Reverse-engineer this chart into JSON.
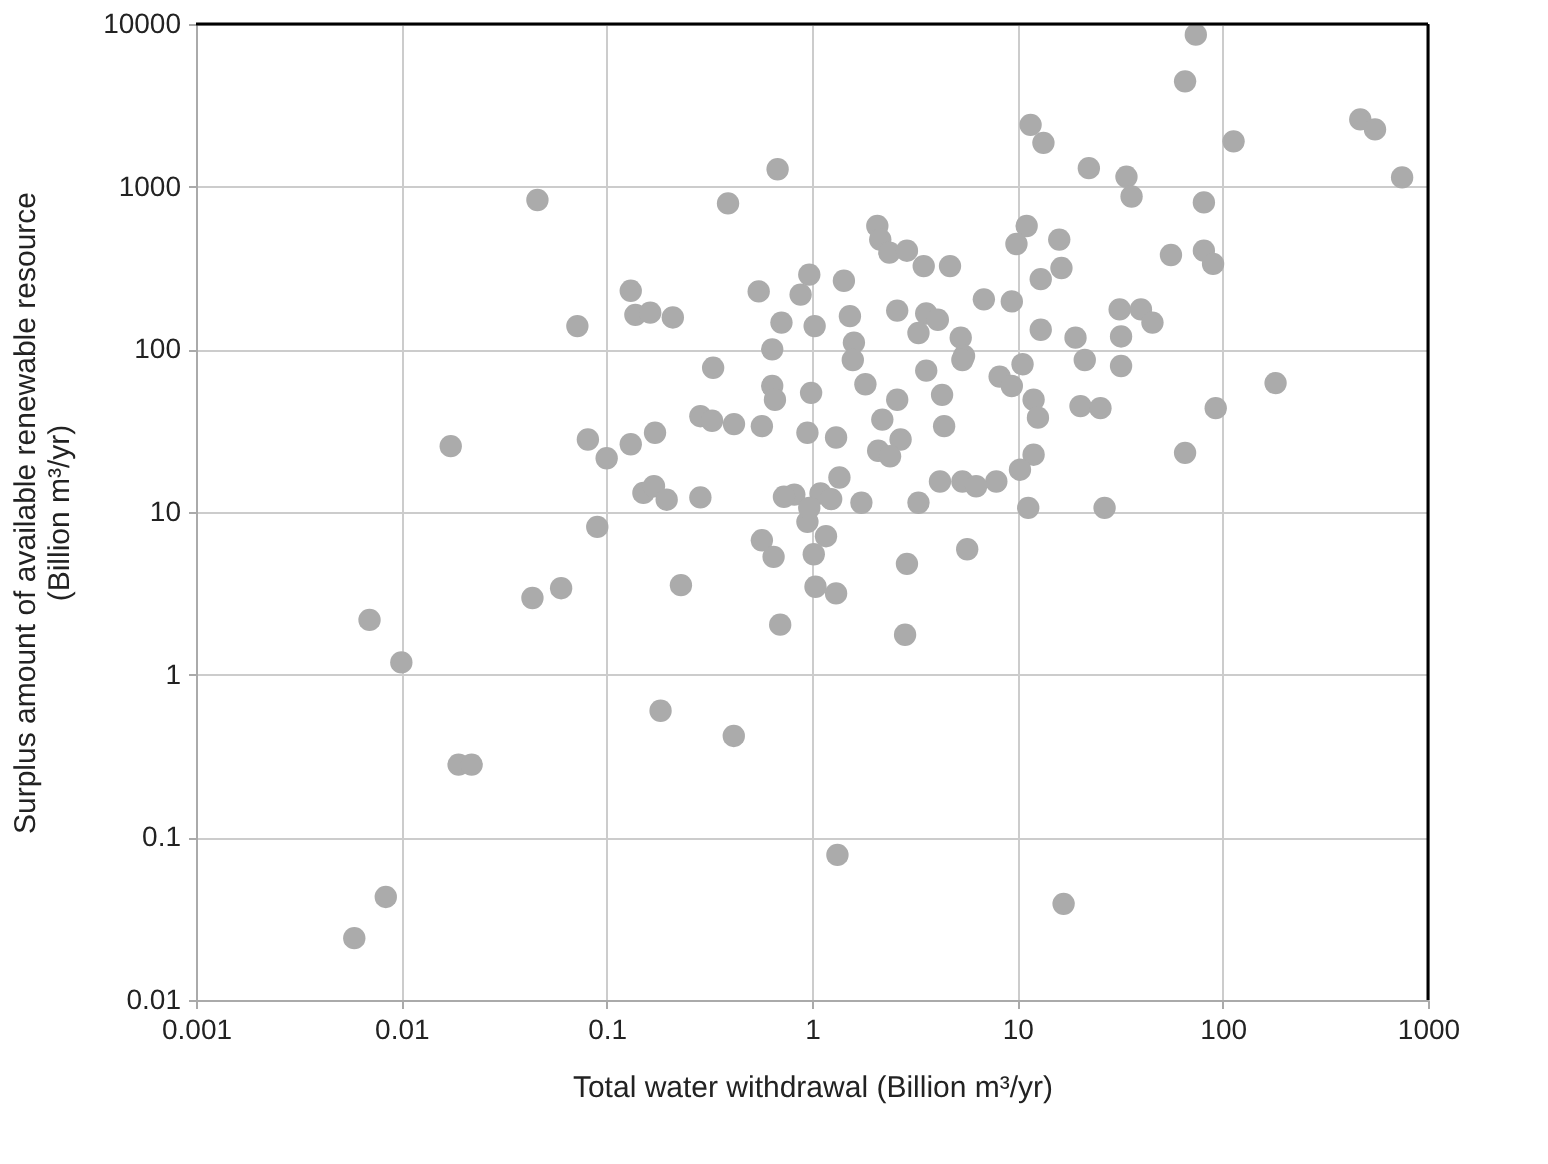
{
  "chart_data": {
    "type": "scatter",
    "xlabel": "Total water withdrawal (Billion m³/yr)",
    "ylabel": "Surplus amount of available renewable resource (Billion m³/yr)",
    "log": "xy",
    "grid": true,
    "marker": "circle",
    "xlim": [
      0.001,
      1000
    ],
    "ylim": [
      0.01,
      10000
    ],
    "xticks": [
      0.001,
      0.01,
      0.1,
      1,
      10,
      100,
      1000
    ],
    "yticks": [
      0.01,
      0.1,
      1,
      10,
      100,
      1000,
      10000
    ],
    "series": [
      {
        "color": "#ababab",
        "x": [
          0.0059,
          0.0084,
          0.007,
          0.01,
          0.019,
          0.022,
          0.0435,
          0.06,
          0.09,
          0.183,
          0.23,
          0.416,
          0.57,
          0.65,
          0.7,
          1.33,
          16.8,
          2.84,
          2.9,
          5.7,
          1.31,
          1.04,
          1.02,
          1.17,
          0.95,
          74,
          65.6,
          11.6,
          13.4,
          113,
          468,
          552,
          748,
          22.3,
          34,
          36,
          81,
          0.68,
          2.08,
          2.15,
          2.38,
          2.9,
          3.5,
          4.7,
          11.1,
          9.9,
          16.0,
          16.4,
          13,
          56,
          81,
          89.8,
          1.43,
          0.97,
          0.88,
          0.55,
          6.87,
          9.4,
          0.71,
          1.03,
          1.53,
          2.6,
          3.6,
          4.1,
          3.3,
          5.3,
          5.5,
          5.4,
          1.6,
          1.58,
          0.64,
          13,
          19.2,
          21.3,
          32,
          31.5,
          40,
          45.5,
          32,
          3.6,
          1.82,
          2.6,
          4.3,
          2.2,
          4.4,
          2.7,
          2.1,
          2.4,
          1.31,
          0.95,
          0.99,
          8.2,
          9.4,
          10.6,
          12,
          12.6,
          20.3,
          25.4,
          92.5,
          181,
          65.6,
          12,
          10.3,
          7.9,
          4.2,
          5.4,
          6.3,
          3.3,
          11.3,
          26.6,
          1.36,
          0.82,
          1.1,
          1.24,
          1.74,
          0.97,
          0.64,
          0.66,
          0.046,
          0.39,
          0.131,
          0.138,
          0.163,
          0.21,
          0.072,
          0.33,
          0.286,
          0.326,
          0.417,
          0.57,
          0.0174,
          0.081,
          0.131,
          0.172,
          0.1,
          0.151,
          0.17,
          0.196,
          0.286,
          0.73
        ],
        "values": [
          0.024,
          0.043,
          2.17,
          1.19,
          0.28,
          0.28,
          2.96,
          3.4,
          8.1,
          0.6,
          3.55,
          0.42,
          6.7,
          5.3,
          2.03,
          0.078,
          0.039,
          1.76,
          4.8,
          5.9,
          3.16,
          3.47,
          5.5,
          7.1,
          8.7,
          8600,
          4440,
          2400,
          1860,
          1900,
          2590,
          2250,
          1140,
          1300,
          1150,
          870,
          800,
          1280,
          573,
          473,
          393,
          404,
          325,
          325,
          573,
          444,
          473,
          316,
          270,
          380,
          404,
          335,
          264,
          288,
          217,
          227,
          203,
          197,
          146,
          139,
          160,
          173,
          166,
          152,
          126,
          118,
          91,
          86,
          110,
          86,
          100,
          132,
          118,
          86,
          120,
          176,
          176,
          146,
          79,
          74,
          61,
          49,
          52.5,
          37,
          33.7,
          27.9,
          23.8,
          22,
          28.7,
          30.7,
          54,
          68,
          59.5,
          81,
          49,
          38,
          44.8,
          43.5,
          43.5,
          62,
          23.1,
          22.5,
          18.2,
          15.4,
          15.4,
          15.4,
          14.4,
          11.4,
          10.6,
          10.6,
          16.3,
          12.8,
          13.0,
          12.0,
          11.4,
          10.6,
          59.5,
          49,
          828,
          789,
          229,
          163,
          168,
          157,
          139,
          77,
          38.8,
          36.4,
          34.7,
          33.7,
          25.4,
          27.9,
          26.1,
          30.7,
          21.4,
          13.1,
          14.4,
          11.9,
          12.3,
          12.4
        ]
      }
    ]
  }
}
